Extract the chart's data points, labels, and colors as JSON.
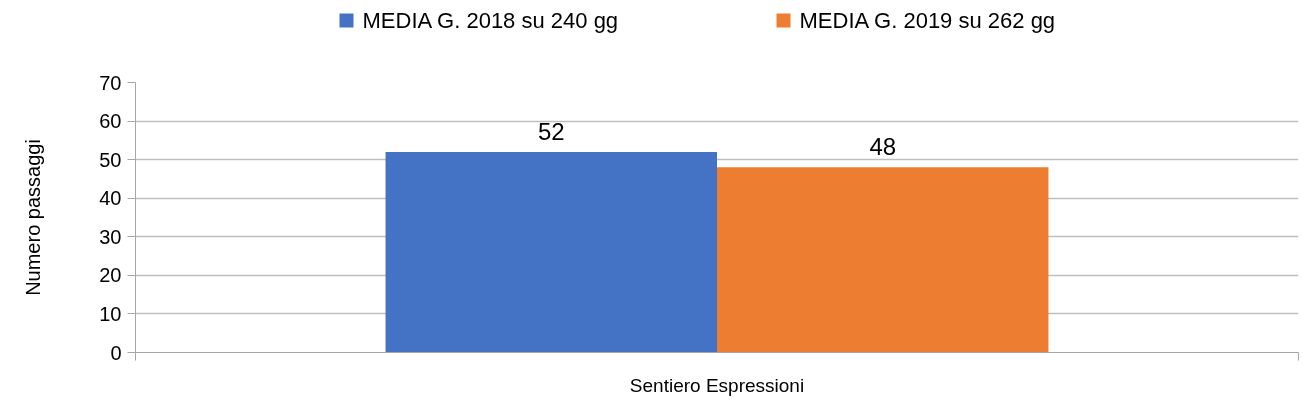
{
  "chart_data": {
    "type": "bar",
    "categories": [
      "Sentiero Espressioni"
    ],
    "series": [
      {
        "name": "MEDIA G. 2018 su 240 gg",
        "color": "#4472c4",
        "values": [
          52
        ]
      },
      {
        "name": "MEDIA G. 2019 su 262 gg",
        "color": "#ed7d31",
        "values": [
          48
        ]
      }
    ],
    "ylabel": "Numero passaggi",
    "ylim": [
      0,
      70
    ],
    "yticks": [
      0,
      10,
      20,
      30,
      40,
      50,
      60,
      70
    ],
    "grid": "y",
    "legend": "top",
    "data_labels": true
  }
}
